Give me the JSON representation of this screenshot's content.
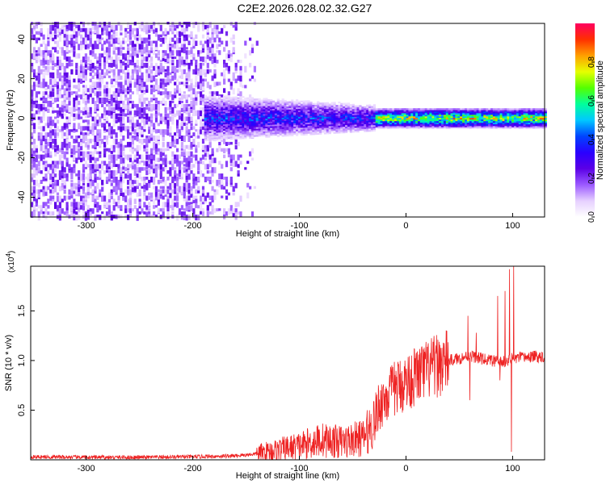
{
  "title": "C2E2.2026.028.02.32.G27",
  "chart_data": [
    {
      "type": "heatmap",
      "xlabel": "Height of straight line (km)",
      "ylabel": "Frequency (Hz)",
      "xlim": [
        -352,
        130
      ],
      "ylim": [
        -50,
        48
      ],
      "xticks": [
        -300,
        -200,
        -100,
        0,
        100
      ],
      "yticks": [
        -40,
        -20,
        0,
        20,
        40
      ],
      "colorbar": {
        "label": "Normalized spectral amplitude",
        "range": [
          0,
          1
        ],
        "ticks": [
          0.0,
          0.2,
          0.4,
          0.6,
          0.8
        ],
        "tick_labels": [
          "0.0",
          "0.2",
          "0.4",
          "0.6",
          "0.8"
        ],
        "colormap": [
          "#ffffff",
          "#e6d0ff",
          "#9b59ff",
          "#5b00e6",
          "#2a00ff",
          "#0044ff",
          "#00c8ff",
          "#00ff9c",
          "#55ff00",
          "#e6ff00",
          "#ffa000",
          "#ff3000",
          "#ff0060"
        ]
      },
      "description_regions": [
        {
          "x_range": [
            -352,
            -140
          ],
          "freq_range": [
            -50,
            48
          ],
          "amplitude": [
            0.05,
            0.25
          ]
        },
        {
          "x_range": [
            -190,
            -30
          ],
          "freq_center": 0,
          "freq_halfwidth": [
            10,
            5
          ],
          "amplitude": [
            0.2,
            0.5
          ]
        },
        {
          "x_range": [
            -30,
            130
          ],
          "freq_center": 0,
          "freq_halfwidth": 3,
          "amplitude": [
            0.5,
            0.95
          ]
        }
      ]
    },
    {
      "type": "line",
      "xlabel": "Height of straight line (km)",
      "ylabel": "SNR (10 * v/v)",
      "yscale_label": "(x10",
      "yscale_exp": "4",
      "yscale_suffix": ")",
      "xlim": [
        -352,
        130
      ],
      "ylim": [
        0,
        1.95
      ],
      "xticks": [
        -300,
        -200,
        -100,
        0,
        100
      ],
      "yticks": [
        0.5,
        1.0,
        1.5
      ],
      "ytick_labels": [
        "0.5",
        "1.0",
        "1.5"
      ],
      "color": "#ee2222",
      "trend_points": [
        [
          -352,
          0.03
        ],
        [
          -300,
          0.025
        ],
        [
          -250,
          0.025
        ],
        [
          -200,
          0.03
        ],
        [
          -160,
          0.04
        ],
        [
          -140,
          0.06
        ],
        [
          -120,
          0.1
        ],
        [
          -100,
          0.14
        ],
        [
          -80,
          0.2
        ],
        [
          -60,
          0.18
        ],
        [
          -40,
          0.22
        ],
        [
          -30,
          0.38
        ],
        [
          -25,
          0.55
        ],
        [
          -20,
          0.62
        ],
        [
          -10,
          0.72
        ],
        [
          0,
          0.78
        ],
        [
          10,
          0.85
        ],
        [
          20,
          0.9
        ],
        [
          30,
          0.95
        ],
        [
          40,
          1.0
        ],
        [
          50,
          1.02
        ],
        [
          60,
          1.05
        ],
        [
          70,
          1.02
        ],
        [
          80,
          1.0
        ],
        [
          90,
          0.98
        ],
        [
          100,
          1.02
        ],
        [
          110,
          1.03
        ],
        [
          120,
          1.04
        ],
        [
          130,
          1.04
        ]
      ],
      "spikes": [
        {
          "x": 58,
          "y": 1.45
        },
        {
          "x": 60,
          "y": 0.6
        },
        {
          "x": 66,
          "y": 1.28
        },
        {
          "x": 75,
          "y": 1.0
        },
        {
          "x": 86,
          "y": 1.65
        },
        {
          "x": 88,
          "y": 0.8
        },
        {
          "x": 93,
          "y": 1.7
        },
        {
          "x": 97,
          "y": 1.92
        },
        {
          "x": 99,
          "y": 0.08
        },
        {
          "x": 101,
          "y": 1.95
        }
      ]
    }
  ]
}
